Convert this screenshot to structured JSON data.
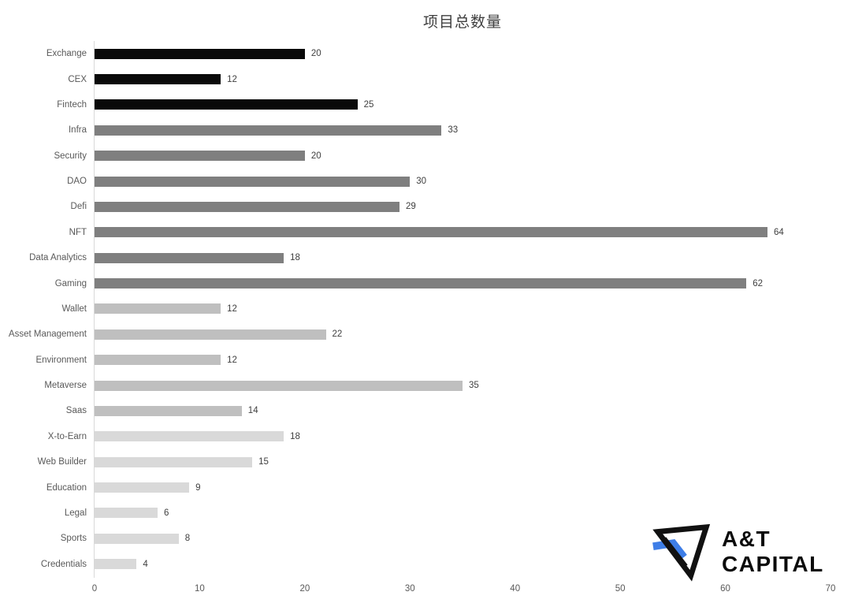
{
  "title": "项目总数量",
  "chart_data": {
    "type": "bar",
    "orientation": "horizontal",
    "title": "项目总数量",
    "xlabel": "",
    "ylabel": "",
    "xlim": [
      0,
      70
    ],
    "x_ticks": [
      0,
      10,
      20,
      30,
      40,
      50,
      60,
      70
    ],
    "grid": false,
    "legend": false,
    "value_labels_shown": true,
    "categories": [
      "Exchange",
      "CEX",
      "Fintech",
      "Infra",
      "Security",
      "DAO",
      "Defi",
      "NFT",
      "Data Analytics",
      "Gaming",
      "Wallet",
      "Asset Management",
      "Environment",
      "Metaverse",
      "Saas",
      "X-to-Earn",
      "Web Builder",
      "Education",
      "Legal",
      "Sports",
      "Credentials"
    ],
    "values": [
      20,
      12,
      25,
      33,
      20,
      30,
      29,
      64,
      18,
      62,
      12,
      22,
      12,
      35,
      14,
      18,
      15,
      9,
      6,
      8,
      4
    ],
    "bar_colors": [
      "#0a0a0a",
      "#0a0a0a",
      "#0a0a0a",
      "#7f7f7f",
      "#7f7f7f",
      "#7f7f7f",
      "#7f7f7f",
      "#7f7f7f",
      "#7f7f7f",
      "#7f7f7f",
      "#bfbfbf",
      "#bfbfbf",
      "#bfbfbf",
      "#bfbfbf",
      "#bfbfbf",
      "#d9d9d9",
      "#d9d9d9",
      "#d9d9d9",
      "#d9d9d9",
      "#d9d9d9",
      "#d9d9d9"
    ]
  },
  "colors": {
    "background": "#ffffff",
    "title_text": "#404040",
    "category_label": "#595959",
    "value_label": "#404040",
    "tick_label": "#595959",
    "axis_line": "#d9d9d9",
    "bar_black": "#0a0a0a",
    "bar_dark_gray": "#7f7f7f",
    "bar_medium_gray": "#bfbfbf",
    "bar_light_gray": "#d9d9d9",
    "logo_black": "#0b0b0b",
    "logo_blue": "#3e7ee7"
  },
  "logo": {
    "line1": "A&T",
    "line2": "CAPITAL"
  }
}
